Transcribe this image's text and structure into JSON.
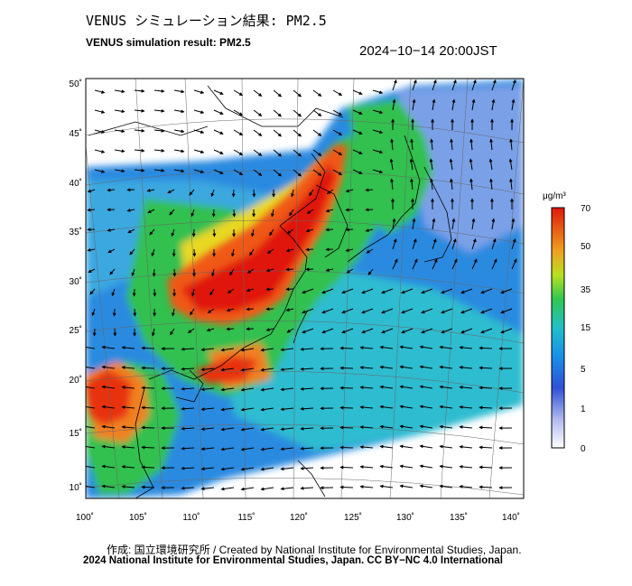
{
  "header": {
    "title_jp": "VENUS シミュレーション結果: PM2.5",
    "title_en": "VENUS simulation result: PM2.5",
    "timestamp": "2024−10−14 20:00JST"
  },
  "map": {
    "lon_labels": [
      "100˚",
      "105˚",
      "110˚",
      "115˚",
      "120˚",
      "125˚",
      "130˚",
      "135˚",
      "140˚"
    ],
    "lat_labels": [
      "50˚",
      "45˚",
      "40˚",
      "35˚",
      "30˚",
      "25˚",
      "20˚",
      "15˚",
      "10˚"
    ]
  },
  "colorbar": {
    "unit": "μg/m³",
    "ticks": [
      "70",
      "50",
      "35",
      "15",
      "5",
      "1",
      "0"
    ],
    "colors": [
      "#d8d8f0",
      "#3050d8",
      "#20b0e0",
      "#20c870",
      "#e8e020",
      "#f08020",
      "#e02010"
    ]
  },
  "footer": {
    "credit": "作成: 国立環境研究所 / Created by National Institute for Environmental Studies, Japan.",
    "copyright": "2024 National Institute for Environmental Studies, Japan. CC BY−NC 4.0 International"
  }
}
